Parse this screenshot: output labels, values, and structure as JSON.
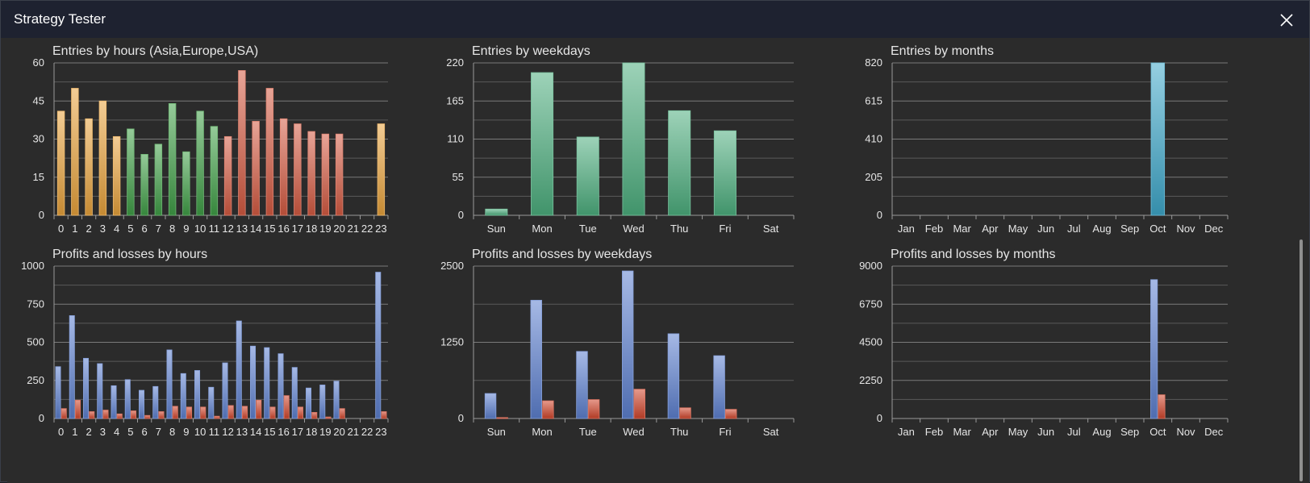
{
  "window": {
    "title": "Strategy Tester"
  },
  "icons": {
    "close": "close-icon"
  },
  "chart_data": [
    {
      "id": "entries-hours",
      "type": "bar",
      "title": "Entries by hours (Asia,Europe,USA)",
      "categories": [
        "0",
        "1",
        "2",
        "3",
        "4",
        "5",
        "6",
        "7",
        "8",
        "9",
        "10",
        "11",
        "12",
        "13",
        "14",
        "15",
        "16",
        "17",
        "18",
        "19",
        "20",
        "21",
        "22",
        "23"
      ],
      "values": [
        41,
        50,
        38,
        45,
        31,
        34,
        24,
        28,
        44,
        25,
        41,
        35,
        31,
        57,
        37,
        50,
        38,
        36,
        33,
        32,
        32,
        0,
        0,
        36
      ],
      "ylim": [
        0,
        60
      ],
      "yticks": [
        0,
        15,
        30,
        45,
        60
      ],
      "grid": true,
      "colors": [
        "#e8a23c",
        "#e8a23c",
        "#e8a23c",
        "#e8a23c",
        "#e8a23c",
        "#3f9e46",
        "#3f9e46",
        "#3f9e46",
        "#3f9e46",
        "#3f9e46",
        "#3f9e46",
        "#3f9e46",
        "#d45a42",
        "#d45a42",
        "#d45a42",
        "#d45a42",
        "#d45a42",
        "#d45a42",
        "#d45a42",
        "#d45a42",
        "#d45a42",
        "#d45a42",
        "#d45a42",
        "#e8a23c"
      ]
    },
    {
      "id": "entries-weekdays",
      "type": "bar",
      "title": "Entries by weekdays",
      "categories": [
        "Sun",
        "Mon",
        "Tue",
        "Wed",
        "Thu",
        "Fri",
        "Sat"
      ],
      "values": [
        9,
        206,
        113,
        220,
        151,
        122,
        0
      ],
      "ylim": [
        0,
        220
      ],
      "yticks": [
        0,
        55,
        110,
        165,
        220
      ],
      "grid": true,
      "colors": [
        "#4cae7e"
      ]
    },
    {
      "id": "entries-months",
      "type": "bar",
      "title": "Entries by months",
      "categories": [
        "Jan",
        "Feb",
        "Mar",
        "Apr",
        "May",
        "Jun",
        "Jul",
        "Aug",
        "Sep",
        "Oct",
        "Nov",
        "Dec"
      ],
      "values": [
        0,
        0,
        0,
        0,
        0,
        0,
        0,
        0,
        0,
        820,
        0,
        0
      ],
      "ylim": [
        0,
        820
      ],
      "yticks": [
        0,
        205,
        410,
        615,
        820
      ],
      "grid": true,
      "colors": [
        "#3ea7c9"
      ]
    },
    {
      "id": "pl-hours",
      "type": "bar",
      "title": "Profits and losses by hours",
      "categories": [
        "0",
        "1",
        "2",
        "3",
        "4",
        "5",
        "6",
        "7",
        "8",
        "9",
        "10",
        "11",
        "12",
        "13",
        "14",
        "15",
        "16",
        "17",
        "18",
        "19",
        "20",
        "21",
        "22",
        "23"
      ],
      "series": [
        {
          "values": [
            340,
            675,
            395,
            360,
            215,
            255,
            185,
            210,
            450,
            295,
            315,
            205,
            365,
            640,
            475,
            465,
            425,
            335,
            200,
            220,
            245,
            0,
            0,
            960
          ],
          "color": "#5d80cf"
        },
        {
          "values": [
            65,
            120,
            45,
            55,
            30,
            50,
            20,
            45,
            80,
            75,
            75,
            15,
            85,
            80,
            120,
            75,
            150,
            75,
            40,
            10,
            65,
            0,
            0,
            45
          ],
          "color": "#d0452c"
        }
      ],
      "ylim": [
        0,
        1000
      ],
      "yticks": [
        0,
        250,
        500,
        750,
        1000
      ],
      "grid": true
    },
    {
      "id": "pl-weekdays",
      "type": "bar",
      "title": "Profits and losses by weekdays",
      "categories": [
        "Sun",
        "Mon",
        "Tue",
        "Wed",
        "Thu",
        "Fri",
        "Sat"
      ],
      "series": [
        {
          "values": [
            410,
            1940,
            1100,
            2420,
            1390,
            1030,
            0
          ],
          "color": "#5d80cf"
        },
        {
          "values": [
            15,
            290,
            310,
            480,
            175,
            150,
            0
          ],
          "color": "#d0452c"
        }
      ],
      "ylim": [
        0,
        2500
      ],
      "yticks": [
        0,
        1250,
        2500
      ],
      "grid": true
    },
    {
      "id": "pl-months",
      "type": "bar",
      "title": "Profits and losses by months",
      "categories": [
        "Jan",
        "Feb",
        "Mar",
        "Apr",
        "May",
        "Jun",
        "Jul",
        "Aug",
        "Sep",
        "Oct",
        "Nov",
        "Dec"
      ],
      "series": [
        {
          "values": [
            0,
            0,
            0,
            0,
            0,
            0,
            0,
            0,
            0,
            8200,
            0,
            0
          ],
          "color": "#5d80cf"
        },
        {
          "values": [
            0,
            0,
            0,
            0,
            0,
            0,
            0,
            0,
            0,
            1400,
            0,
            0
          ],
          "color": "#d0452c"
        }
      ],
      "ylim": [
        0,
        9000
      ],
      "yticks": [
        0,
        2250,
        4500,
        6750,
        9000
      ],
      "grid": true
    }
  ]
}
